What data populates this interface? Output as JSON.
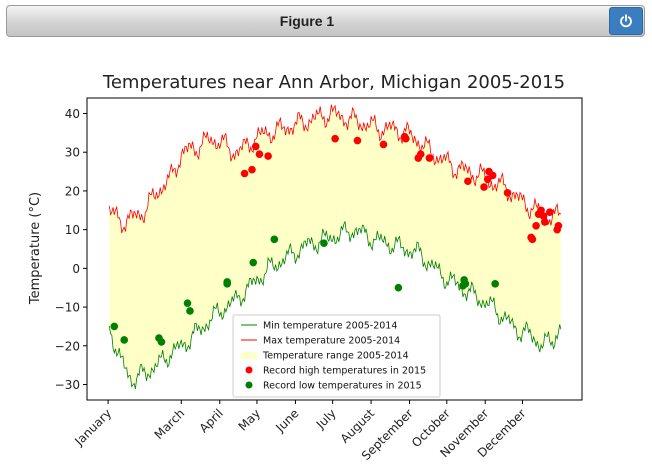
{
  "window": {
    "title": "Figure 1",
    "close_icon": "power-icon",
    "close_color": "#3a7ec0"
  },
  "chart_data": {
    "type": "line",
    "title": "Temperatures near Ann Arbor, Michigan 2005-2015",
    "ylabel": "Temperature ( $^\\circ$C)",
    "ylabel_display": "Temperature (°C)",
    "xlabel": "",
    "x_unit": "day of year",
    "xlim": [
      -17,
      382
    ],
    "ylim": [
      -34,
      44
    ],
    "yticks": [
      -30,
      -20,
      -10,
      0,
      10,
      20,
      30,
      40
    ],
    "xtick_labels": [
      "January",
      "March",
      "April",
      "May",
      "June",
      "July",
      "August",
      "September",
      "October",
      "November",
      "December"
    ],
    "xtick_positions": [
      0,
      59,
      90,
      120,
      151,
      181,
      212,
      243,
      273,
      304,
      334
    ],
    "grid": false,
    "legend_position": "lower-center",
    "colors": {
      "min": "#008000",
      "max": "#ff0000",
      "fill": "#ffffc8",
      "record_high": "#ff0000",
      "record_low": "#008000"
    },
    "series": [
      {
        "name": "Min temperature 2005-2014",
        "x": [
          1,
          10,
          20,
          30,
          40,
          50,
          60,
          70,
          80,
          90,
          100,
          110,
          120,
          130,
          140,
          150,
          160,
          170,
          180,
          190,
          200,
          210,
          220,
          230,
          240,
          250,
          260,
          270,
          280,
          290,
          300,
          310,
          320,
          330,
          340,
          350,
          360,
          365
        ],
        "y": [
          -15,
          -24,
          -29,
          -27,
          -25,
          -22,
          -20,
          -17,
          -14,
          -11,
          -9,
          -6,
          -3,
          0,
          2,
          4,
          6,
          7,
          8,
          9,
          10,
          8,
          7,
          6,
          5,
          4,
          1,
          -2,
          -4,
          -6,
          -8,
          -10,
          -13,
          -16,
          -17,
          -20,
          -18,
          -15
        ]
      },
      {
        "name": "Max temperature 2005-2014",
        "x": [
          1,
          10,
          20,
          30,
          40,
          50,
          60,
          70,
          80,
          90,
          100,
          110,
          120,
          130,
          140,
          150,
          160,
          170,
          180,
          190,
          200,
          210,
          220,
          230,
          240,
          250,
          260,
          270,
          280,
          290,
          300,
          310,
          320,
          330,
          340,
          350,
          360,
          365
        ],
        "y": [
          15,
          12,
          13,
          15,
          20,
          23,
          30,
          31,
          33,
          33,
          30,
          31,
          34,
          35,
          36,
          37,
          38,
          39,
          40,
          39,
          38,
          37,
          36,
          36,
          35,
          33,
          30,
          28,
          26,
          25,
          24,
          22,
          21,
          18,
          16,
          14,
          13,
          14
        ]
      },
      {
        "name": "Temperature range 2005-2014",
        "kind": "fill_between"
      },
      {
        "name": "Record high temperatures in 2015",
        "kind": "scatter",
        "x": [
          110,
          116,
          119,
          122,
          129,
          183,
          201,
          222,
          239,
          240,
          250,
          252,
          259,
          290,
          303,
          306,
          307,
          310,
          322,
          341,
          342,
          345,
          347,
          349,
          351,
          352,
          356,
          362,
          363
        ],
        "y": [
          24.5,
          25.5,
          31.5,
          29.5,
          29,
          33.5,
          33,
          32,
          34,
          33.5,
          28.5,
          29.5,
          28.5,
          22.5,
          21,
          23,
          25,
          24,
          19.5,
          8,
          7.5,
          11,
          14,
          15,
          13.5,
          12,
          14.5,
          10,
          11
        ]
      },
      {
        "name": "Record low temperatures in 2015",
        "kind": "scatter",
        "x": [
          5,
          13,
          41,
          43,
          64,
          66,
          96,
          96,
          117,
          134,
          174,
          234,
          286,
          287,
          288,
          312
        ],
        "y": [
          -15,
          -18.5,
          -18,
          -19,
          -9,
          -11,
          -3.5,
          -4,
          1.5,
          7.5,
          6.5,
          -5,
          -4.5,
          -3,
          -4,
          -4
        ]
      }
    ]
  }
}
